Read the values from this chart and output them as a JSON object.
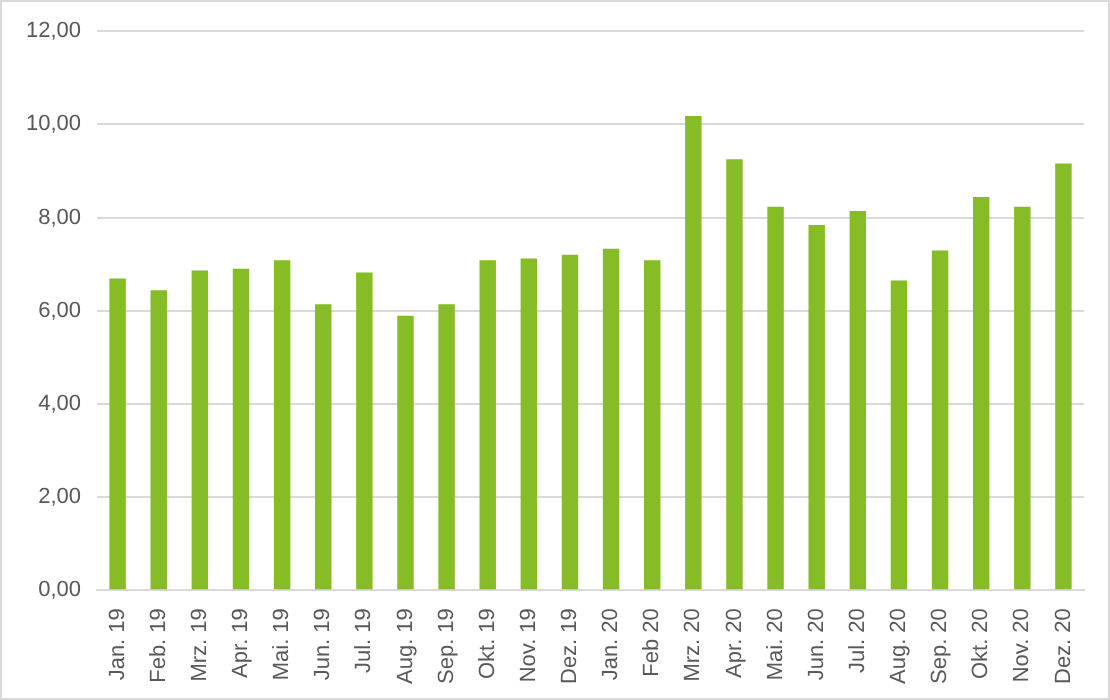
{
  "chart_data": {
    "type": "bar",
    "categories": [
      "Jan. 19",
      "Feb. 19",
      "Mrz. 19",
      "Apr. 19",
      "Mai. 19",
      "Jun. 19",
      "Jul. 19",
      "Aug. 19",
      "Sep. 19",
      "Okt. 19",
      "Nov. 19",
      "Dez. 19",
      "Jan. 20",
      "Feb 20",
      "Mrz. 20",
      "Apr. 20",
      "Mai. 20",
      "Jun. 20",
      "Jul. 20",
      "Aug. 20",
      "Sep. 20",
      "Okt. 20",
      "Nov. 20",
      "Dez. 20"
    ],
    "values": [
      6.69,
      6.44,
      6.86,
      6.9,
      7.08,
      6.14,
      6.82,
      5.89,
      6.14,
      7.08,
      7.12,
      7.2,
      7.33,
      7.08,
      10.18,
      9.25,
      8.23,
      7.84,
      8.14,
      6.65,
      7.29,
      8.44,
      8.23,
      9.16
    ],
    "color": "#86bc25",
    "ylim": [
      0,
      12
    ],
    "yticks": [
      {
        "value": 0,
        "label": "0,00"
      },
      {
        "value": 2,
        "label": "2,00"
      },
      {
        "value": 4,
        "label": "4,00"
      },
      {
        "value": 6,
        "label": "6,00"
      },
      {
        "value": 8,
        "label": "8,00"
      },
      {
        "value": 10,
        "label": "10,00"
      },
      {
        "value": 12,
        "label": "12,00"
      }
    ],
    "grid": "y",
    "legend": false
  }
}
